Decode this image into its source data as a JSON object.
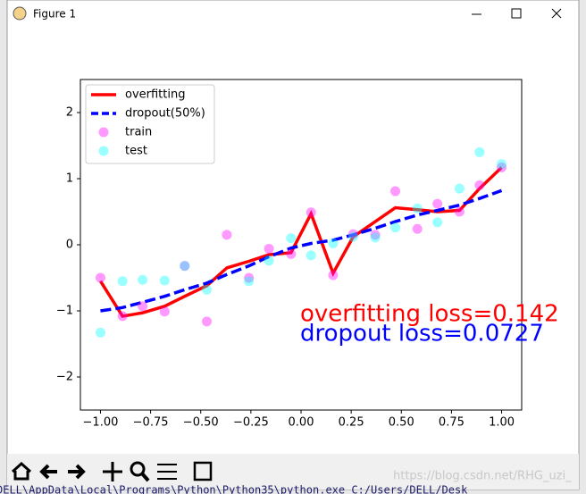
{
  "window": {
    "title": "Figure 1"
  },
  "chart_data": {
    "type": "line",
    "xlim": [
      -1.1,
      1.1
    ],
    "ylim": [
      -2.5,
      2.5
    ],
    "xticks": [
      {
        "value": -1,
        "label": "−1.00"
      },
      {
        "value": -0.75,
        "label": "−0.75"
      },
      {
        "value": -0.5,
        "label": "−0.50"
      },
      {
        "value": -0.25,
        "label": "−0.25"
      },
      {
        "value": 0,
        "label": "0.00"
      },
      {
        "value": 0.25,
        "label": "0.25"
      },
      {
        "value": 0.5,
        "label": "0.50"
      },
      {
        "value": 0.75,
        "label": "0.75"
      },
      {
        "value": 1,
        "label": "1.00"
      }
    ],
    "yticks": [
      {
        "value": -2,
        "label": "−2"
      },
      {
        "value": -1,
        "label": "−1"
      },
      0,
      1,
      2
    ],
    "legend": "upper left",
    "x": [
      -1,
      -0.89,
      -0.79,
      -0.68,
      -0.58,
      -0.47,
      -0.37,
      -0.26,
      -0.16,
      -0.05,
      0.05,
      0.16,
      0.26,
      0.37,
      0.47,
      0.58,
      0.68,
      0.79,
      0.89,
      1
    ],
    "series": [
      {
        "name": "overfitting",
        "color": "#ff0000",
        "style": "solid",
        "values": [
          -0.55,
          -1.08,
          -1.03,
          -0.93,
          -0.78,
          -0.62,
          -0.35,
          -0.25,
          -0.15,
          -0.12,
          0.47,
          -0.43,
          0.12,
          0.35,
          0.56,
          0.53,
          0.5,
          0.52,
          0.85,
          1.17
        ]
      },
      {
        "name": "dropout(50%)",
        "color": "#0000ff",
        "style": "dashed",
        "values": [
          -1.0,
          -0.95,
          -0.87,
          -0.78,
          -0.68,
          -0.58,
          -0.45,
          -0.32,
          -0.18,
          -0.05,
          0.02,
          0.07,
          0.15,
          0.25,
          0.35,
          0.45,
          0.52,
          0.6,
          0.7,
          0.82
        ]
      },
      {
        "name": "train",
        "color": "#ff00ff",
        "style": "scatter",
        "x": [
          -1,
          -0.89,
          -0.79,
          -0.68,
          -0.58,
          -0.47,
          -0.37,
          -0.26,
          -0.16,
          -0.05,
          0.05,
          0.16,
          0.26,
          0.37,
          0.47,
          0.58,
          0.68,
          0.79,
          0.89,
          1
        ],
        "values": [
          -0.5,
          -1.08,
          -0.93,
          -1.01,
          -0.32,
          -1.16,
          0.15,
          -0.5,
          -0.06,
          -0.14,
          0.49,
          -0.46,
          0.16,
          0.15,
          0.81,
          0.24,
          0.62,
          0.5,
          0.9,
          1.17
        ]
      },
      {
        "name": "test",
        "color": "#00ffff",
        "style": "scatter",
        "x": [
          -1,
          -0.89,
          -0.79,
          -0.68,
          -0.58,
          -0.47,
          -0.26,
          -0.16,
          -0.05,
          0.05,
          0.16,
          0.26,
          0.37,
          0.47,
          0.58,
          0.68,
          0.79,
          0.89,
          1
        ],
        "values": [
          -1.33,
          -0.55,
          -0.53,
          -0.54,
          -0.32,
          -0.68,
          -0.55,
          -0.24,
          0.1,
          -0.16,
          0.02,
          0.12,
          0.11,
          0.26,
          0.55,
          0.34,
          0.85,
          1.4,
          1.22
        ]
      }
    ],
    "annotations": [
      {
        "text": "overfitting loss=0.142",
        "color": "#ff0000"
      },
      {
        "text": "dropout loss=0.0727",
        "color": "#0000ff"
      }
    ]
  },
  "background": {
    "console_line": "DELL\\AppData\\Local\\Programs\\Python\\Python35\\python.exe C:/Users/DELL/Desk",
    "watermark": "https://blog.csdn.net/RHG_uzi_"
  }
}
